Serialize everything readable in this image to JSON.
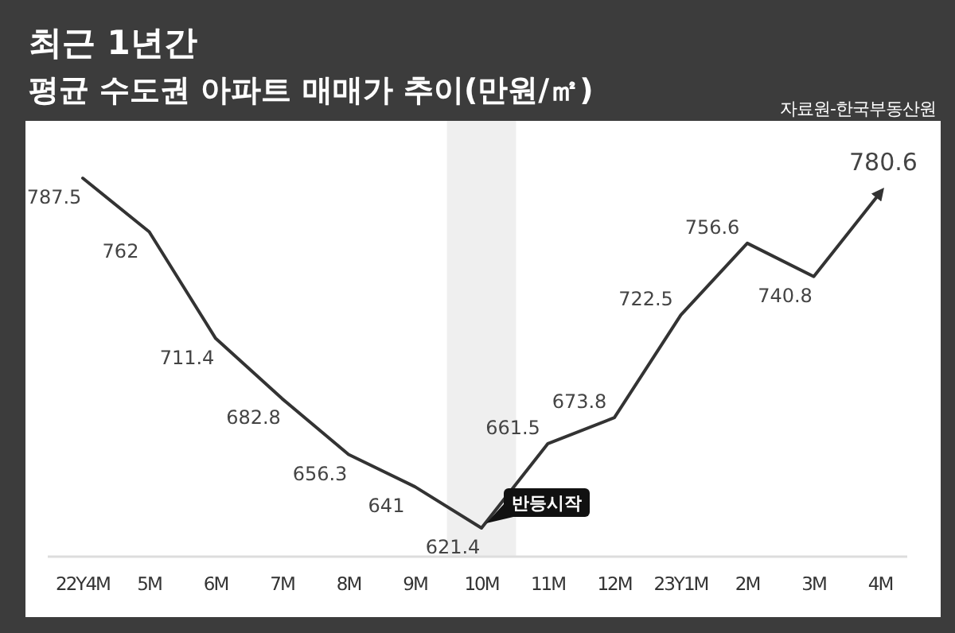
{
  "chart_data": {
    "type": "line",
    "title": "최근 1년간",
    "subtitle": "평균 수도권 아파트 매매가 추이(만원/㎡)",
    "categories": [
      "22Y4M",
      "5M",
      "6M",
      "7M",
      "8M",
      "9M",
      "10M",
      "11M",
      "12M",
      "23Y1M",
      "2M",
      "3M",
      "4M"
    ],
    "series": [
      {
        "color": "#333333",
        "values": [
          787.5,
          762,
          711.4,
          682.8,
          656.3,
          641,
          621.4,
          661.5,
          673.8,
          722.5,
          756.6,
          740.8,
          780.6
        ]
      }
    ],
    "data_labels": true,
    "bands": [
      {
        "axis": "x",
        "from": "10M",
        "to": "10M",
        "color": "#efefef"
      }
    ],
    "annotations": [
      "자료원-한국부동산원",
      {
        "text": "반등시작",
        "x": "10M",
        "y": 621.4
      }
    ]
  }
}
